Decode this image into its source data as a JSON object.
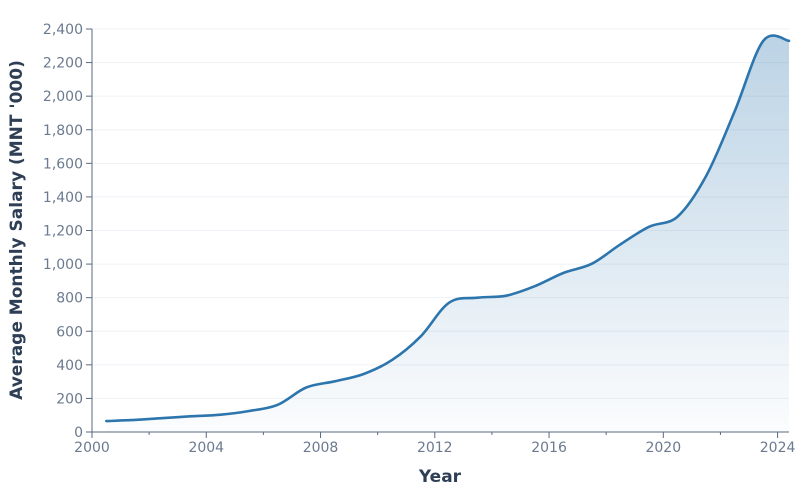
{
  "chart_data": {
    "type": "area",
    "title": "",
    "xlabel": "Year",
    "ylabel": "Average Monthly Salary (MNT '000)",
    "xlim": [
      2000,
      2024
    ],
    "ylim": [
      0,
      2400
    ],
    "x_ticks": [
      "2000",
      "2004",
      "2008",
      "2012",
      "2016",
      "2020",
      "2024"
    ],
    "y_ticks": [
      "0",
      "200",
      "400",
      "600",
      "800",
      "1,000",
      "1,200",
      "1,400",
      "1,600",
      "1,800",
      "2,000",
      "2,200",
      "2,400"
    ],
    "grid": true,
    "series": [
      {
        "x": [
          2000.5,
          2001.5,
          2002.5,
          2003.5,
          2004.5,
          2005.5,
          2006.5,
          2007.5,
          2008.5,
          2009.5,
          2010.5,
          2011.5,
          2012.5,
          2013.5,
          2014.5,
          2015.5,
          2016.5,
          2017.5,
          2018.5,
          2019.5,
          2020.5,
          2021.5,
          2022.5,
          2023.5,
          2024.5
        ],
        "y": [
          65,
          72,
          83,
          94,
          103,
          125,
          162,
          265,
          302,
          345,
          428,
          568,
          770,
          800,
          812,
          868,
          947,
          1002,
          1118,
          1222,
          1283,
          1525,
          1910,
          2330,
          2330
        ],
        "color": "#2c75ad"
      }
    ]
  }
}
